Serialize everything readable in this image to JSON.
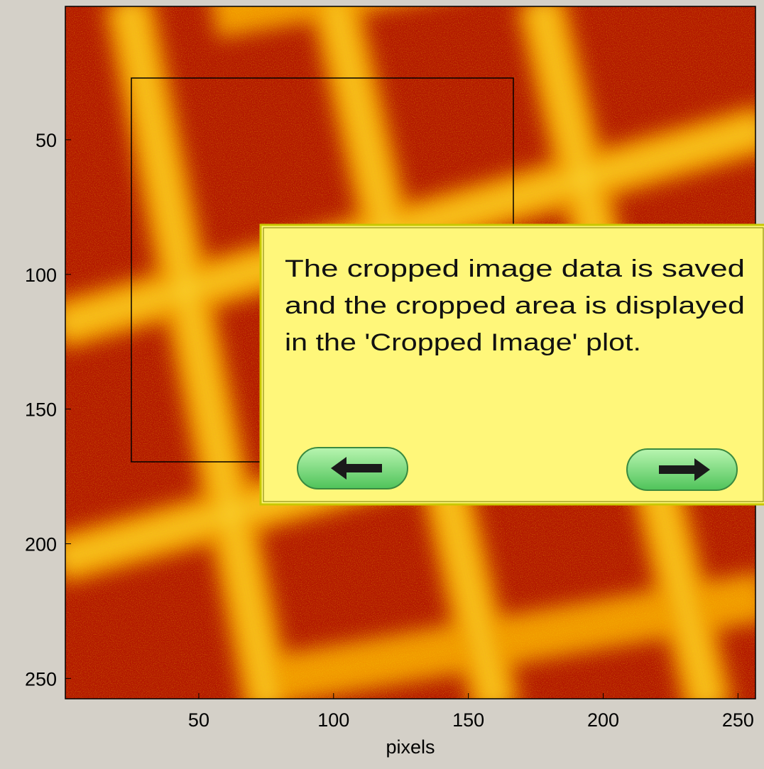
{
  "axes": {
    "xlabel": "pixels",
    "xticks": [
      50,
      100,
      150,
      200,
      250
    ],
    "yticks": [
      50,
      100,
      150,
      200,
      250
    ]
  },
  "tooltip": {
    "lines": [
      "The cropped image data is saved",
      "and the cropped area is displayed",
      "in the 'Cropped Image' plot."
    ]
  }
}
